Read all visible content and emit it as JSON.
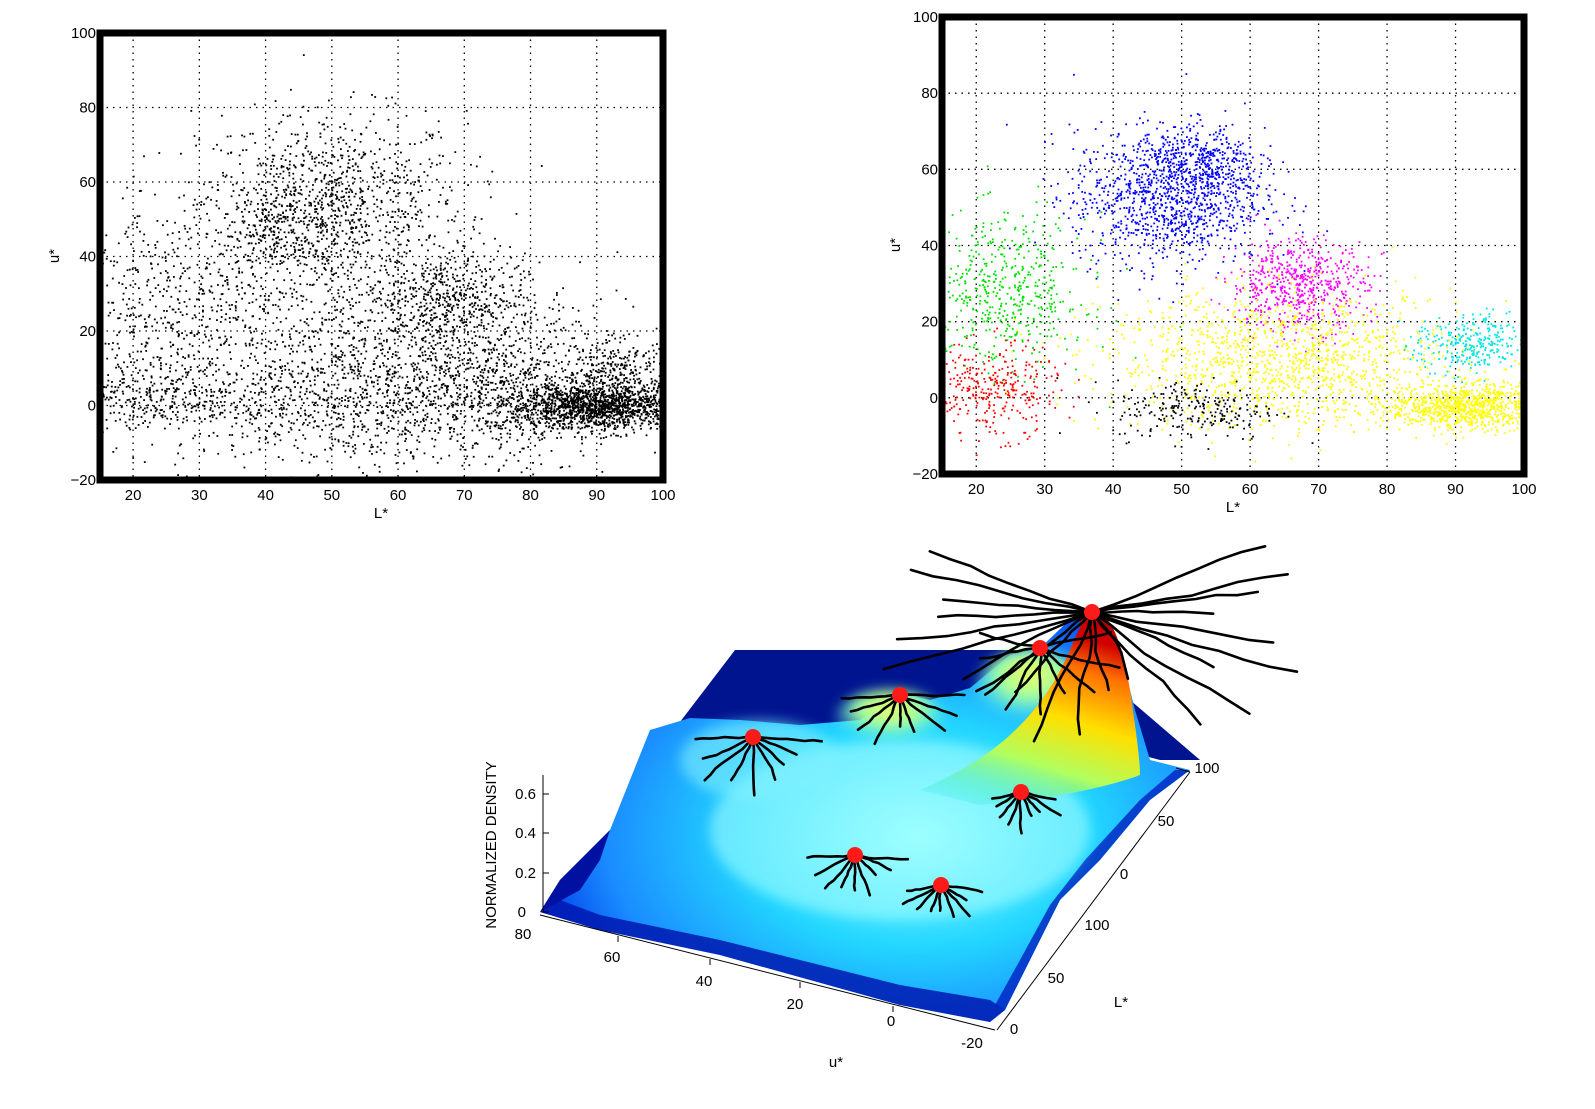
{
  "chart_data": [
    {
      "type": "scatter",
      "xlabel": "L*",
      "ylabel": "u*",
      "xlim": [
        15,
        100
      ],
      "ylim": [
        -20,
        100
      ],
      "x_ticks": [
        "20",
        "30",
        "40",
        "50",
        "60",
        "70",
        "80",
        "90",
        "100"
      ],
      "y_ticks": [
        "-20",
        "0",
        "20",
        "40",
        "60",
        "80",
        "100"
      ],
      "grid": true,
      "series": [
        {
          "color": "#000000",
          "clusters": [
            {
              "center": [
                50,
                55
              ],
              "spread": [
                10,
                12
              ],
              "count": 900
            },
            {
              "center": [
                43,
                47
              ],
              "spread": [
                6,
                7
              ],
              "count": 350
            },
            {
              "center": [
                67,
                29
              ],
              "spread": [
                6,
                6
              ],
              "count": 450
            },
            {
              "center": [
                25,
                22
              ],
              "spread": [
                10,
                16
              ],
              "count": 700
            },
            {
              "center": [
                22,
                2
              ],
              "spread": [
                8,
                4
              ],
              "count": 300
            },
            {
              "center": [
                60,
                12
              ],
              "spread": [
                14,
                14
              ],
              "count": 1000
            },
            {
              "center": [
                50,
                0
              ],
              "spread": [
                10,
                7
              ],
              "count": 400
            },
            {
              "center": [
                90,
                0
              ],
              "spread": [
                7,
                3
              ],
              "count": 1600
            },
            {
              "center": [
                93,
                10
              ],
              "spread": [
                4,
                4
              ],
              "count": 250
            },
            {
              "center": [
                75,
                5
              ],
              "spread": [
                10,
                10
              ],
              "count": 700
            }
          ]
        }
      ]
    },
    {
      "type": "scatter",
      "xlabel": "L*",
      "ylabel": "u*",
      "xlim": [
        15,
        100
      ],
      "ylim": [
        -20,
        100
      ],
      "x_ticks": [
        "20",
        "30",
        "40",
        "50",
        "60",
        "70",
        "80",
        "90",
        "100"
      ],
      "y_ticks": [
        "-20",
        "0",
        "20",
        "40",
        "60",
        "80",
        "100"
      ],
      "grid": true,
      "series": [
        {
          "color": "#0000ff",
          "clusters": [
            {
              "center": [
                48,
                53
              ],
              "spread": [
                7,
                9
              ],
              "count": 1100
            },
            {
              "center": [
                53,
                62
              ],
              "spread": [
                4,
                5
              ],
              "count": 300
            }
          ]
        },
        {
          "color": "#00e000",
          "clusters": [
            {
              "center": [
                24,
                28
              ],
              "spread": [
                6,
                10
              ],
              "count": 500
            }
          ]
        },
        {
          "color": "#ff0000",
          "clusters": [
            {
              "center": [
                22,
                2
              ],
              "spread": [
                5,
                6
              ],
              "count": 330
            }
          ]
        },
        {
          "color": "#ff00ff",
          "clusters": [
            {
              "center": [
                67,
                30
              ],
              "spread": [
                5,
                6
              ],
              "count": 600
            }
          ]
        },
        {
          "color": "#ffff00",
          "clusters": [
            {
              "center": [
                65,
                10
              ],
              "spread": [
                13,
                9
              ],
              "count": 1300
            },
            {
              "center": [
                92,
                -2
              ],
              "spread": [
                6,
                3
              ],
              "count": 1000
            }
          ]
        },
        {
          "color": "#00e5e5",
          "clusters": [
            {
              "center": [
                92,
                14
              ],
              "spread": [
                4,
                4
              ],
              "count": 300
            }
          ]
        },
        {
          "color": "#000000",
          "clusters": [
            {
              "center": [
                52,
                -3
              ],
              "spread": [
                6,
                4
              ],
              "count": 230
            }
          ]
        }
      ]
    },
    {
      "type": "surface",
      "zlabel": "NORMALIZED DENSITY",
      "xlabel": "u*",
      "ylabel": "L*",
      "z_ticks": [
        "0",
        "0.2",
        "0.4",
        "0.6"
      ],
      "u_ticks": [
        "80",
        "60",
        "40",
        "20",
        "0",
        "-20"
      ],
      "l_ticks_back": [
        "0",
        "50",
        "100"
      ],
      "l_ticks_front": [
        "0",
        "50",
        "100"
      ],
      "mode_count": 7,
      "colormap": [
        "#00008f",
        "#0050ff",
        "#00d0ff",
        "#8fffff",
        "#ffff00",
        "#ff8000",
        "#c00000"
      ]
    }
  ]
}
